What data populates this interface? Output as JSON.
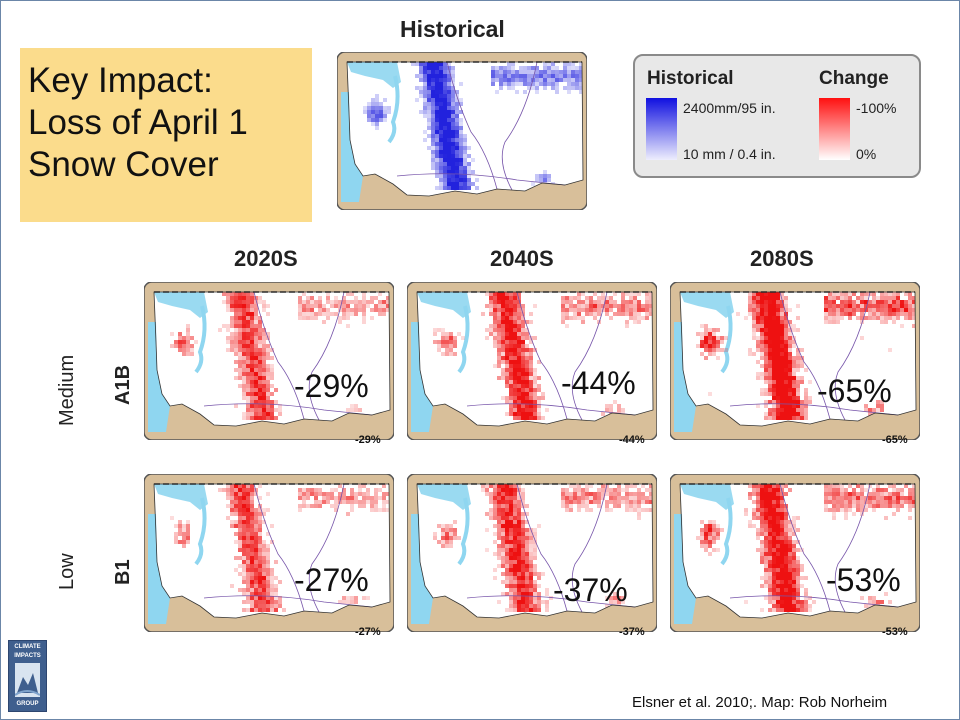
{
  "key_impact": {
    "line1": "Key Impact:",
    "line2": "Loss of April 1",
    "line3": "Snow Cover"
  },
  "historical": {
    "title": "Historical"
  },
  "legend": {
    "historical_header": "Historical",
    "change_header": "Change",
    "historical_max": "2400mm/95 in.",
    "historical_min": "10 mm / 0.4 in.",
    "change_max": "-100%",
    "change_min": "0%"
  },
  "columns": [
    "2020S",
    "2040S",
    "2080S"
  ],
  "rows": [
    {
      "scenario": "A1B",
      "level": "Medium"
    },
    {
      "scenario": "B1",
      "level": "Low"
    }
  ],
  "values": {
    "a1b_2020": "-29%",
    "a1b_2040": "-44%",
    "a1b_2080": "-65%",
    "b1_2020": "-27%",
    "b1_2040": "-37%",
    "b1_2080": "-53%"
  },
  "citation": "Elsner et al. 2010;. Map: Rob Norheim",
  "logo": {
    "line1": "CLIMATE",
    "line2": "IMPACTS",
    "line3": "GROUP"
  },
  "colors": {
    "snow_historical": "#2222dd",
    "snow_loss": "#ee1111",
    "land": "#ffffff",
    "water": "#8fd6f0",
    "out_of_state": "#d8bf9a",
    "key_box": "#fbdc8c",
    "legend_bg": "#e8e8e8"
  },
  "maps": [
    {
      "id": "historical",
      "type": "historical"
    },
    {
      "id": "a1b-2020",
      "type": "change",
      "loss_fraction": 0.29
    },
    {
      "id": "a1b-2040",
      "type": "change",
      "loss_fraction": 0.44
    },
    {
      "id": "a1b-2080",
      "type": "change",
      "loss_fraction": 0.65
    },
    {
      "id": "b1-2020",
      "type": "change",
      "loss_fraction": 0.27
    },
    {
      "id": "b1-2040",
      "type": "change",
      "loss_fraction": 0.37
    },
    {
      "id": "b1-2080",
      "type": "change",
      "loss_fraction": 0.53
    }
  ]
}
